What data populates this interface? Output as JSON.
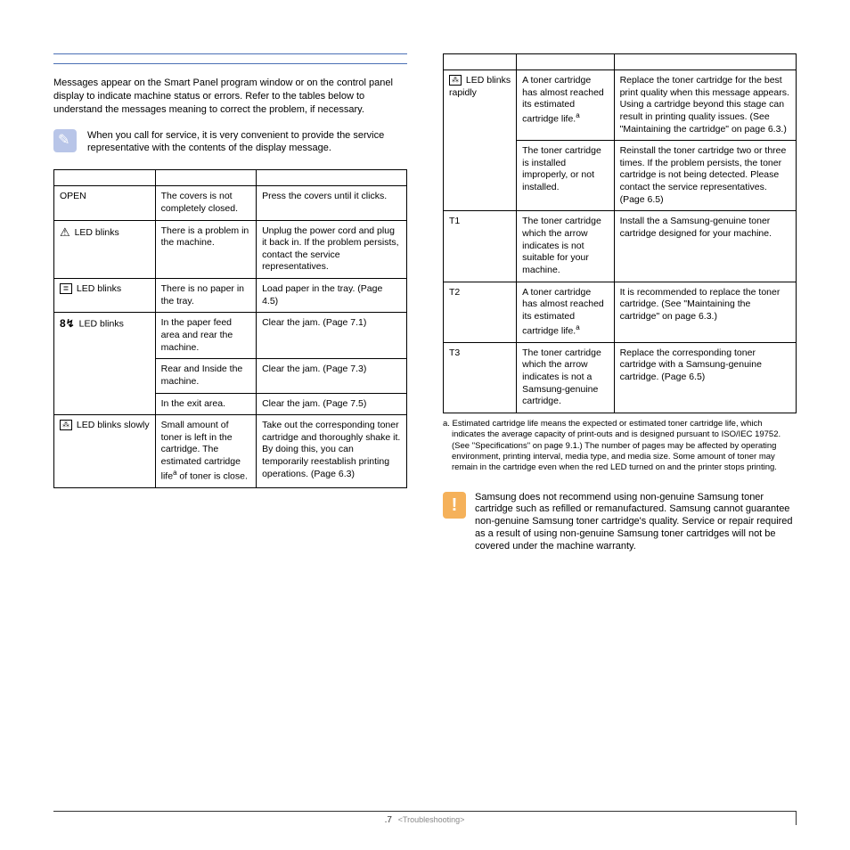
{
  "intro": "Messages appear on the Smart Panel program window or on the control panel display to indicate machine status or errors. Refer to the tables below to understand the messages meaning to correct the problem, if necessary.",
  "note": "When you call for service, it is very convenient to provide the service representative with the contents of the display message.",
  "table1": [
    {
      "c0": "OPEN",
      "c1": "The covers is not completely closed.",
      "c2": "Press the covers until it clicks."
    },
    {
      "c0": "LED blinks",
      "icon": "tri",
      "c1": "There is a problem in the machine.",
      "c2": "Unplug the power cord and plug it back in. If the problem persists, contact the service representatives."
    },
    {
      "c0": "LED blinks",
      "icon": "tray",
      "c1": "There is no paper in the tray.",
      "c2": "Load paper in the tray. (Page 4.5)"
    },
    {
      "c0": "LED blinks",
      "icon": "jam",
      "rowspan": 3,
      "rows": [
        {
          "c1": "In the paper feed area and rear the machine.",
          "c2": "Clear the jam. (Page 7.1)"
        },
        {
          "c1": "Rear and Inside the machine.",
          "c2": "Clear the jam. (Page 7.3)"
        },
        {
          "c1": "In the exit area.",
          "c2": "Clear the jam. (Page 7.5)"
        }
      ]
    },
    {
      "c0": "LED blinks slowly",
      "icon": "toner",
      "c1": "Small amount of toner is left in the cartridge. The estimated cartridge life",
      "c1_sup": "a",
      "c1_after": " of toner is close.",
      "c2": "Take out the corresponding toner cartridge and thoroughly shake it. By doing this, you can temporarily reestablish printing operations. (Page 6.3)"
    }
  ],
  "table2_group1_label": "LED blinks rapidly",
  "table2_group1_icon": "toner",
  "table2": [
    {
      "c1": "A toner cartridge has almost reached its estimated cartridge life.",
      "c1_sup": "a",
      "c2": "Replace the toner cartridge for the best print quality when this message appears. Using a cartridge beyond this stage can result in printing quality issues. (See \"Maintaining the cartridge\" on page 6.3.)"
    },
    {
      "c1": "The toner cartridge is installed improperly, or not installed.",
      "c2": "Reinstall the toner cartridge two or three times. If the problem persists, the toner cartridge is not being detected. Please contact the service representatives. (Page 6.5)"
    }
  ],
  "table2b": [
    {
      "c0": "T1",
      "c1": "The toner cartridge which the arrow indicates is not suitable for your machine.",
      "c2": "Install the a Samsung-genuine toner cartridge designed for your machine."
    },
    {
      "c0": "T2",
      "c1": "A toner cartridge has almost reached its estimated cartridge life.",
      "c1_sup": "a",
      "c2": " It is recommended to replace the toner cartridge. (See \"Maintaining the cartridge\" on page 6.3.)"
    },
    {
      "c0": "T3",
      "c1": "The toner cartridge which the arrow indicates is not a Samsung-genuine cartridge.",
      "c2": "Replace the corresponding toner cartridge with a Samsung-genuine cartridge. (Page 6.5)"
    }
  ],
  "footnote": "a.  Estimated cartridge life means the expected or estimated toner cartridge life, which indicates the average capacity of print-outs and is designed pursuant to ISO/IEC 19752. (See \"Specifications\" on page 9.1.) The number of pages may be affected by operating environment, printing interval, media type, and media size. Some amount of toner may remain in the cartridge even when the red LED turned on and the printer stops printing.",
  "warning": "Samsung does not recommend using non-genuine Samsung toner cartridge such as refilled or remanufactured. Samsung cannot guarantee non-genuine Samsung toner cartridge's quality. Service or repair required as a result of using non-genuine Samsung toner cartridges will not be covered under the machine warranty.",
  "footer_page": ".7",
  "footer_section": "<Troubleshooting>"
}
